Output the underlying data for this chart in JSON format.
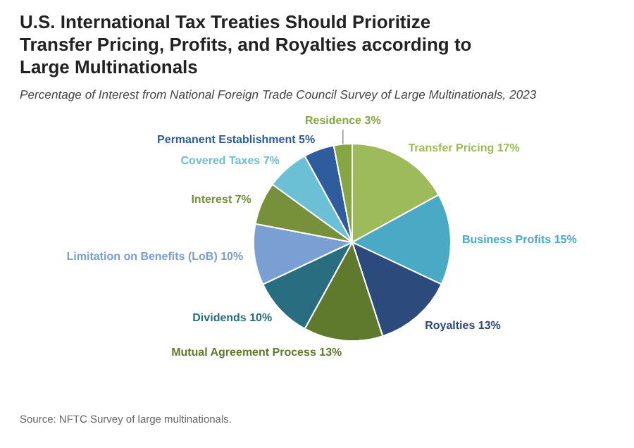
{
  "chart_data": {
    "type": "pie",
    "title": "U.S. International Tax Treaties Should Prioritize Transfer Pricing, Profits, and Royalties according to Large Multinationals",
    "subtitle": "Percentage of Interest from National Foreign Trade Council Survey of Large Multinationals, 2023",
    "categories": [
      "Transfer Pricing",
      "Business Profits",
      "Royalties",
      "Mutual Agreement Process",
      "Dividends",
      "Limitation on Benefits (LoB)",
      "Interest",
      "Covered Taxes",
      "Permanent Establishment",
      "Residence"
    ],
    "values": [
      17,
      15,
      13,
      13,
      10,
      10,
      7,
      7,
      5,
      3
    ],
    "colors": [
      "#9dbb5a",
      "#4aaac5",
      "#2c4a7c",
      "#5f7a2c",
      "#286e80",
      "#7a9fd2",
      "#77913a",
      "#6cc0d6",
      "#2f5c9c",
      "#86a644"
    ],
    "value_labels": [
      "17%",
      "15%",
      "13%",
      "13%",
      "10%",
      "10%",
      "7%",
      "7%",
      "5%",
      "3%"
    ],
    "annotations": [
      "Source: NFTC Survey of large multinationals."
    ]
  }
}
